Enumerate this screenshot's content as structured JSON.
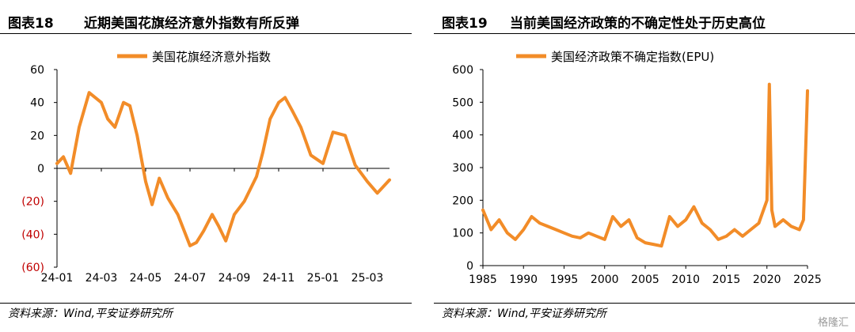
{
  "left": {
    "fig_label": "图表18",
    "fig_title": "近期美国花旗经济意外指数有所反弹",
    "source": "资料来源：Wind,平安证券研究所"
  },
  "right": {
    "fig_label": "图表19",
    "fig_title": "当前美国经济政策的不确定性处于历史高位",
    "source": "资料来源：Wind,平安证券研究所"
  },
  "watermark": "格隆汇",
  "colors": {
    "line": "#f28c28",
    "negative_label": "#c00000",
    "axis": "#000000"
  },
  "chart_data": [
    {
      "type": "line",
      "legend_position": "top-center",
      "ylim": [
        -60,
        60
      ],
      "yticks": [
        60,
        40,
        20,
        0,
        -20,
        -40,
        -60
      ],
      "ytick_labels": [
        "60",
        "40",
        "20",
        "0",
        "(20)",
        "(40)",
        "(60)"
      ],
      "x_range": [
        "2024-01",
        "2025-04"
      ],
      "xticks": [
        "24-01",
        "24-03",
        "24-05",
        "24-07",
        "24-09",
        "24-11",
        "25-01",
        "25-03"
      ],
      "grid": false,
      "series": [
        {
          "name": "美国花旗经济意外指数",
          "x": [
            "2024-01-01",
            "2024-01-10",
            "2024-01-20",
            "2024-02-01",
            "2024-02-15",
            "2024-03-01",
            "2024-03-10",
            "2024-03-20",
            "2024-04-01",
            "2024-04-10",
            "2024-04-20",
            "2024-05-01",
            "2024-05-10",
            "2024-05-20",
            "2024-06-01",
            "2024-06-15",
            "2024-07-01",
            "2024-07-10",
            "2024-07-20",
            "2024-08-01",
            "2024-08-10",
            "2024-08-20",
            "2024-09-01",
            "2024-09-15",
            "2024-10-01",
            "2024-10-10",
            "2024-10-20",
            "2024-11-01",
            "2024-11-10",
            "2024-11-20",
            "2024-12-01",
            "2024-12-15",
            "2025-01-01",
            "2025-01-15",
            "2025-02-01",
            "2025-02-15",
            "2025-03-01",
            "2025-03-15",
            "2025-04-01"
          ],
          "values": [
            3,
            7,
            -3,
            25,
            46,
            40,
            30,
            25,
            40,
            38,
            20,
            -8,
            -22,
            -6,
            -18,
            -28,
            -47,
            -45,
            -38,
            -28,
            -35,
            -44,
            -28,
            -20,
            -5,
            10,
            30,
            40,
            43,
            35,
            25,
            8,
            3,
            22,
            20,
            2,
            -8,
            -15,
            -7
          ]
        }
      ]
    },
    {
      "type": "line",
      "legend_position": "top-center",
      "ylim": [
        0,
        600
      ],
      "yticks": [
        0,
        100,
        200,
        300,
        400,
        500,
        600
      ],
      "xlim": [
        1985,
        2025
      ],
      "xticks": [
        1985,
        1990,
        1995,
        2000,
        2005,
        2010,
        2015,
        2020,
        2025
      ],
      "grid": false,
      "series": [
        {
          "name": "美国经济政策不确定指数(EPU)",
          "x": [
            1985,
            1986,
            1987,
            1988,
            1989,
            1990,
            1991,
            1992,
            1993,
            1994,
            1995,
            1996,
            1997,
            1998,
            1999,
            2000,
            2001,
            2002,
            2003,
            2004,
            2005,
            2006,
            2007,
            2008,
            2009,
            2010,
            2011,
            2012,
            2013,
            2014,
            2015,
            2016,
            2017,
            2018,
            2019,
            2020,
            2020.3,
            2020.6,
            2021,
            2022,
            2023,
            2024,
            2024.5,
            2025
          ],
          "values": [
            170,
            110,
            140,
            100,
            80,
            110,
            150,
            130,
            120,
            110,
            100,
            90,
            85,
            100,
            90,
            80,
            150,
            120,
            140,
            85,
            70,
            65,
            60,
            150,
            120,
            140,
            180,
            130,
            110,
            80,
            90,
            110,
            90,
            110,
            130,
            200,
            555,
            170,
            120,
            140,
            120,
            110,
            140,
            535
          ]
        }
      ]
    }
  ]
}
